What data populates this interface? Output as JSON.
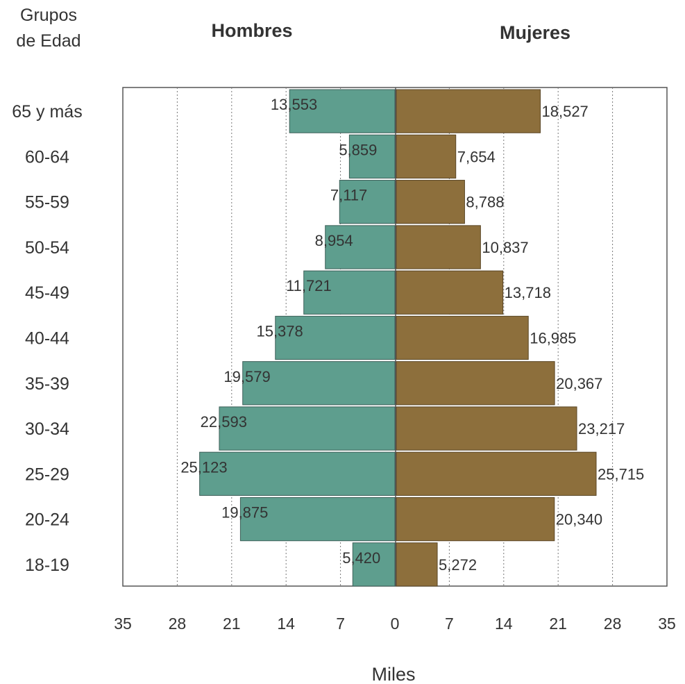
{
  "chart_data": {
    "type": "bar",
    "subtype": "population-pyramid",
    "category_axis_title": "Grupos de Edad",
    "xlabel": "Miles",
    "categories": [
      "65 y más",
      "60-64",
      "55-59",
      "50-54",
      "45-49",
      "40-44",
      "35-39",
      "30-34",
      "25-29",
      "20-24",
      "18-19"
    ],
    "series": [
      {
        "name": "Hombres",
        "side": "left",
        "color": "#5e9e8e",
        "values": [
          13.553,
          5.859,
          7.117,
          8.954,
          11.721,
          15.378,
          19.579,
          22.593,
          25.123,
          19.875,
          5.42
        ],
        "value_labels": [
          "13,553",
          "5,859",
          "7,117",
          "8,954",
          "11,721",
          "15,378",
          "19,579",
          "22,593",
          "25,123",
          "19,875",
          "5,420"
        ]
      },
      {
        "name": "Mujeres",
        "side": "right",
        "color": "#8d6f3c",
        "values": [
          18.527,
          7.654,
          8.788,
          10.837,
          13.718,
          16.985,
          20.367,
          23.217,
          25.715,
          20.34,
          5.272
        ],
        "value_labels": [
          "18,527",
          "7,654",
          "8,788",
          "10,837",
          "13,718",
          "16,985",
          "20,367",
          "23,217",
          "25,715",
          "20,340",
          "5,272"
        ]
      }
    ],
    "xlim": [
      0,
      35
    ],
    "x_ticks_left": [
      "35",
      "28",
      "21",
      "14",
      "7"
    ],
    "x_ticks_right": [
      "0",
      "7",
      "14",
      "21",
      "28",
      "35"
    ],
    "x_tick_values_left": [
      35,
      28,
      21,
      14,
      7
    ],
    "x_tick_values_right": [
      0,
      7,
      14,
      21,
      28,
      35
    ],
    "grid": "vertical dotted"
  }
}
